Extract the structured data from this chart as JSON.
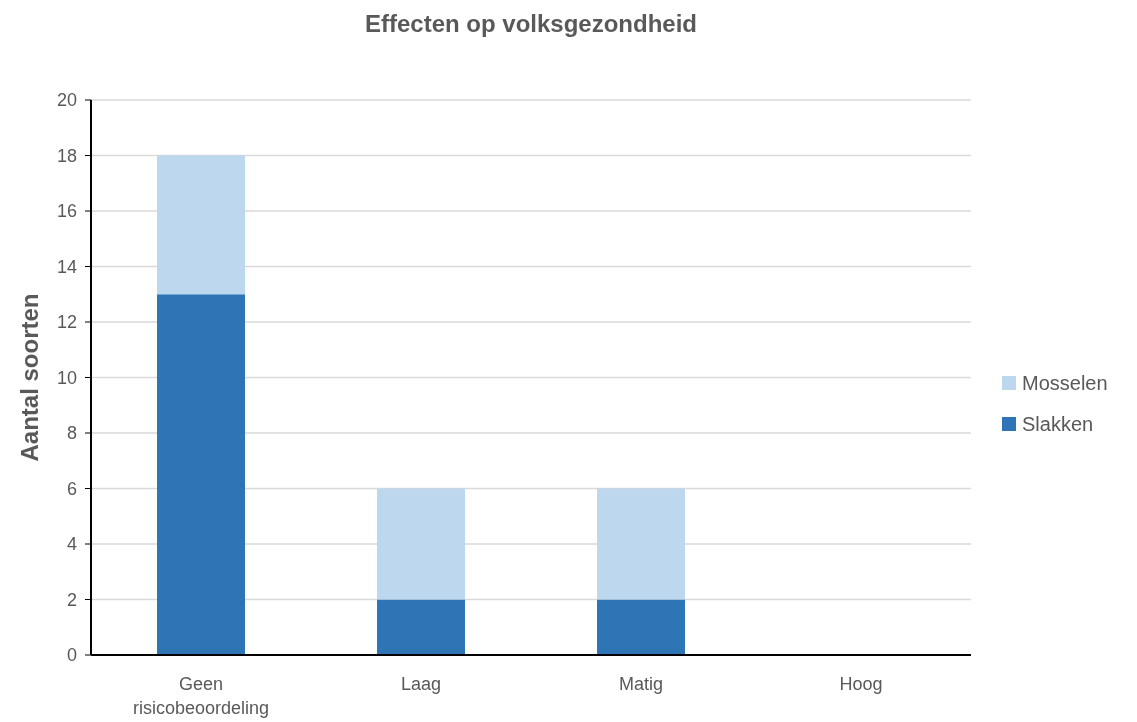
{
  "chart_data": {
    "type": "bar",
    "title": "Effecten op volksgezondheid",
    "ylabel": "Aantal soorten",
    "categories": [
      "Geen risicobeoordeling",
      "Laag",
      "Matig",
      "Hoog"
    ],
    "stacked": true,
    "series": [
      {
        "name": "Slakken",
        "color": "#2e75b6",
        "values": [
          13,
          2,
          2,
          0
        ]
      },
      {
        "name": "Mosselen",
        "color": "#bdd7ee",
        "values": [
          5,
          4,
          4,
          0
        ]
      }
    ],
    "ylim": [
      0,
      20
    ],
    "yticks": [
      0,
      2,
      4,
      6,
      8,
      10,
      12,
      14,
      16,
      18,
      20
    ],
    "grid": "y",
    "legend": "right"
  }
}
